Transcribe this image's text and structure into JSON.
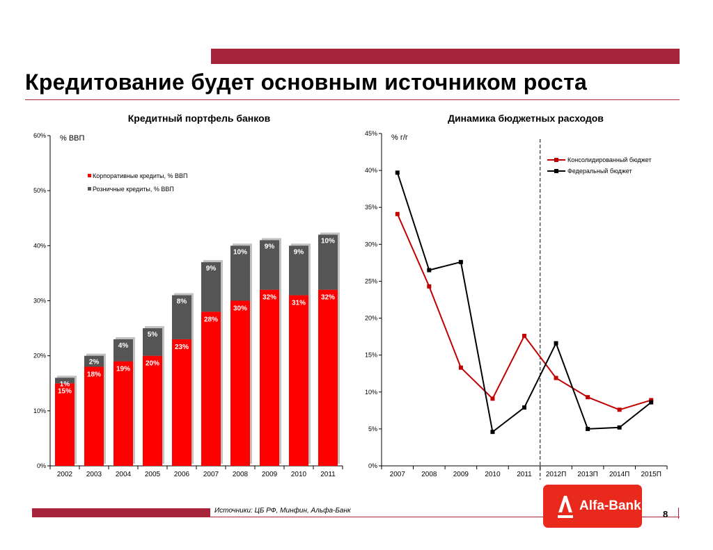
{
  "title": "Кредитование будет основным источником роста",
  "left_chart_heading": "Кредитный портфель банков",
  "right_chart_heading": "Динамика бюджетных расходов",
  "source": "Источники: ЦБ РФ, Минфин, Альфа-Банк",
  "page_number": "8",
  "logo_text": "Alfa-Bank",
  "colors": {
    "brand": "#a5243a",
    "corporate": "#ff0000",
    "retail": "#555555",
    "consolidated": "#c00000",
    "federal": "#000000",
    "logo": "#e8291c"
  },
  "chart_data": [
    {
      "type": "bar",
      "stacked": true,
      "title": "Кредитный портфель банков",
      "unit_label": "% ВВП",
      "categories": [
        "2002",
        "2003",
        "2004",
        "2005",
        "2006",
        "2007",
        "2008",
        "2009",
        "2010",
        "2011"
      ],
      "series": [
        {
          "name": "Корпоративные кредиты, % ВВП",
          "values": [
            15,
            18,
            19,
            20,
            23,
            28,
            30,
            32,
            31,
            32
          ],
          "labels": [
            "15%",
            "18%",
            "19%",
            "20%",
            "23%",
            "28%",
            "30%",
            "32%",
            "31%",
            "32%"
          ]
        },
        {
          "name": "Розничные кредиты, % ВВП",
          "values": [
            1,
            2,
            4,
            5,
            8,
            9,
            10,
            9,
            9,
            10
          ],
          "labels": [
            "1%",
            "2%",
            "4%",
            "5%",
            "8%",
            "9%",
            "10%",
            "9%",
            "9%",
            "10%"
          ]
        }
      ],
      "ylim": [
        0,
        60
      ],
      "yticks": [
        "0%",
        "10%",
        "20%",
        "30%",
        "40%",
        "50%",
        "60%"
      ],
      "grid": false,
      "legend": "top-left"
    },
    {
      "type": "line",
      "title": "Динамика бюджетных расходов",
      "unit_label": "% г/г",
      "categories": [
        "2007",
        "2008",
        "2009",
        "2010",
        "2011",
        "2012П",
        "2013П",
        "2014П",
        "2015П"
      ],
      "series": [
        {
          "name": "Консолидированный бюджет",
          "values": [
            34.1,
            24.3,
            13.3,
            9.1,
            17.6,
            11.9,
            9.3,
            7.6,
            8.9
          ]
        },
        {
          "name": "Федеральный бюджет",
          "values": [
            39.7,
            26.5,
            27.6,
            4.6,
            7.9,
            16.6,
            5.0,
            5.2,
            8.6
          ]
        }
      ],
      "ylim": [
        0,
        45
      ],
      "yticks": [
        "0%",
        "5%",
        "10%",
        "15%",
        "20%",
        "25%",
        "30%",
        "35%",
        "40%",
        "45%"
      ],
      "forecast_divider_after": "2011",
      "grid": false,
      "legend": "top-right"
    }
  ]
}
